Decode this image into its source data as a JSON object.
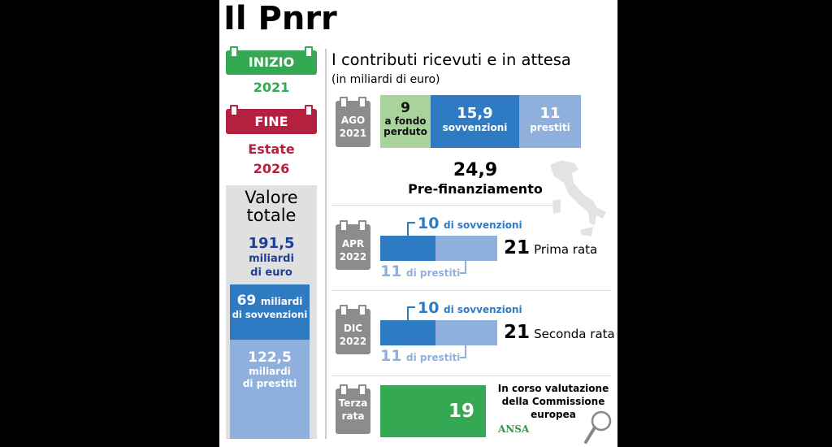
{
  "title": "Il Pnrr",
  "left": {
    "start_label": "INIZIO",
    "start_year": "2021",
    "end_label": "FINE",
    "end_line1": "Estate",
    "end_line2": "2026",
    "total_title_1": "Valore",
    "total_title_2": "totale",
    "total_value": "191,5",
    "total_unit_1": "miliardi",
    "total_unit_2": "di euro",
    "grants_value": "69",
    "grants_unit_1": "miliardi",
    "grants_unit_2": "di sovvenzioni",
    "loans_value": "122,5",
    "loans_unit_1": "miliardi",
    "loans_unit_2": "di prestiti"
  },
  "right": {
    "title": "I contributi ricevuti e in attesa",
    "subtitle": "(in miliardi di euro)",
    "ago": {
      "month": "AGO",
      "year": "2021",
      "fondo_value": "9",
      "fondo_label_1": "a fondo",
      "fondo_label_2": "perduto",
      "sovv_value": "15,9",
      "sovv_label": "sovvenzioni",
      "prest_value": "11",
      "prest_label": "prestiti",
      "total": "24,9",
      "total_label": "Pre-finanziamento"
    },
    "apr": {
      "month": "APR",
      "year": "2022",
      "sovv_value": "10",
      "sovv_label": "di sovvenzioni",
      "prest_value": "11",
      "prest_label": "di prestiti",
      "total": "21",
      "total_label": "Prima rata"
    },
    "dic": {
      "month": "DIC",
      "year": "2022",
      "sovv_value": "10",
      "sovv_label": "di sovvenzioni",
      "prest_value": "11",
      "prest_label": "di prestiti",
      "total": "21",
      "total_label": "Seconda rata"
    },
    "terza": {
      "label_1": "Terza",
      "label_2": "rata",
      "value": "19",
      "note_1": "In corso valutazione",
      "note_2": "della Commissione",
      "note_3": "europea"
    },
    "source": "ANSA"
  },
  "colors": {
    "green": "#34a853",
    "light_green": "#a8d49c",
    "red": "#b5203f",
    "blue": "#2e7bc4",
    "light_blue": "#8fb0dd",
    "gray": "#8c8c8c"
  },
  "chart_data": {
    "type": "bar",
    "categories": [
      "AGO 2021",
      "APR 2022",
      "DIC 2022",
      "Terza rata"
    ],
    "series": [
      {
        "name": "a fondo perduto",
        "values": [
          9,
          null,
          null,
          null
        ]
      },
      {
        "name": "sovvenzioni",
        "values": [
          15.9,
          10,
          10,
          null
        ]
      },
      {
        "name": "prestiti",
        "values": [
          11,
          11,
          11,
          null
        ]
      },
      {
        "name": "In corso valutazione",
        "values": [
          null,
          null,
          null,
          19
        ]
      }
    ]
  }
}
